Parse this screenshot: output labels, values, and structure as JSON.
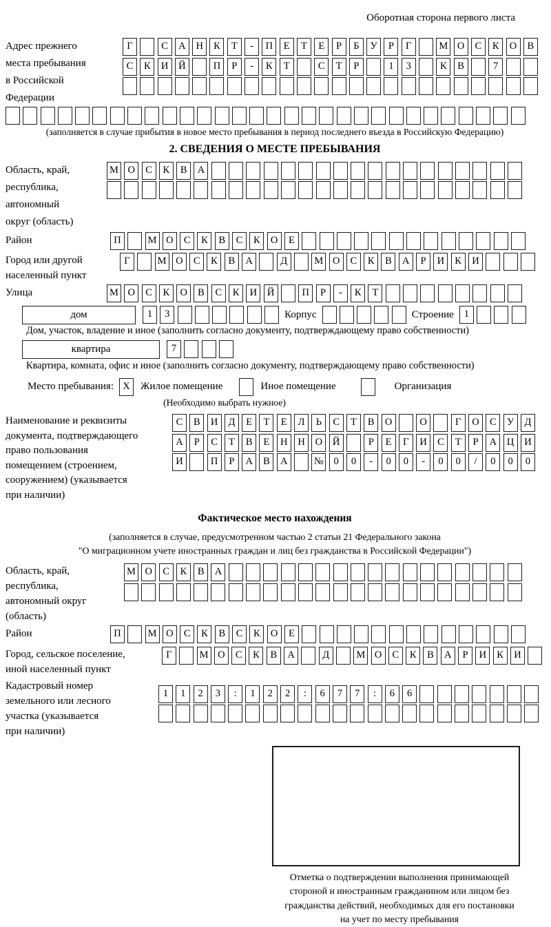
{
  "header": {
    "side_note": "Оборотная сторона первого листа"
  },
  "prev_address": {
    "label_lines": [
      "Адрес прежнего",
      "места пребывания",
      "в Российской",
      "Федерации"
    ],
    "row1": "Г САНКТ-ПЕТЕРБУРГ МОСКОВ",
    "row2": "СКИЙ ПР-КТ СТР 13 КВ 7",
    "row3": "",
    "row4": "",
    "caption": "(заполняется в случае прибытия в новое место пребывания в период последнего въезда в Российскую Федерацию)"
  },
  "section2": {
    "title": "2. СВЕДЕНИЯ О МЕСТЕ ПРЕБЫВАНИЯ",
    "region": {
      "label_lines": [
        "Область, край,",
        "республика,",
        "автономный",
        "округ (область)"
      ],
      "row1": "МОСКВА",
      "row2": ""
    },
    "district": {
      "label": "Район",
      "row": "П МОСКВСКОЕ"
    },
    "city": {
      "label_lines": [
        "Город или другой",
        "населенный пункт"
      ],
      "row": "Г МОСКВА Д МОСКВАРИКИ"
    },
    "street": {
      "label": "Улица",
      "row": "МОСКОВСКИЙ ПР-КТ"
    },
    "house": {
      "box_label": "дом",
      "num": "13",
      "korpus_label": "Корпус",
      "korpus": "",
      "stroenie_label": "Строение",
      "stroenie": "1"
    },
    "house_caption": "Дом, участок, владение и иное (заполнить согласно документу, подтверждающему право собственности)",
    "apartment": {
      "box_label": "квартира",
      "num": "7"
    },
    "apartment_caption": "Квартира, комната, офис и иное (заполнить согласно документу, подтверждающему право собственности)",
    "stay": {
      "label": "Место пребывания:",
      "options": [
        {
          "label": "Жилое помещение",
          "mark": "X"
        },
        {
          "label": "Иное помещение",
          "mark": ""
        },
        {
          "label": "Организация",
          "mark": ""
        }
      ],
      "choose_note": "(Необходимо выбрать нужное)"
    },
    "document": {
      "label_lines": [
        "Наименование и реквизиты",
        "документа, подтверждающего",
        "право пользования",
        "помещением (строением,",
        "сооружением) (указывается",
        "при наличии)"
      ],
      "row1": "СВИДЕТЕЛЬСТВО О ГОСУД",
      "row2": "АРСТВЕННОЙ РЕГИСТРАЦИ",
      "row3": "И ПРАВА №00-00-00/000"
    }
  },
  "fact": {
    "title": "Фактическое место нахождения",
    "note_lines": [
      "(заполняется в случае, предусмотренном частью 2 статьи 21 Федерального закона",
      "\"О миграционном учете иностранных граждан и лиц без гражданства в Российской Федерации\")"
    ],
    "region": {
      "label_lines": [
        "Область, край,",
        "республика,",
        "автономный округ",
        "(область)"
      ],
      "row1": "МОСКВА",
      "row2": ""
    },
    "district": {
      "label": "Район",
      "row": "П МОСКВСКОЕ"
    },
    "city": {
      "label_lines": [
        "Город, сельское поселение,",
        "иной населенный пункт"
      ],
      "row": "Г МОСКВА Д МОСКВАРИКИ"
    },
    "cadastre": {
      "label_lines": [
        "Кадастровый номер",
        "земельного или лесного",
        "участка (указывается",
        "при наличии)"
      ],
      "row1": "1123:122:677:66",
      "row2": ""
    },
    "stamp_caption_lines": [
      "Отметка о подтверждении выполнения принимающей",
      "стороной и иностранным гражданином или лицом без",
      "гражданства действий, необходимых для его постановки",
      "на учет по месту пребывания"
    ]
  }
}
